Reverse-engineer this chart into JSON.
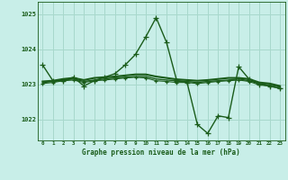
{
  "title": "Graphe pression niveau de la mer (hPa)",
  "bg_color": "#c8eee8",
  "grid_color": "#a8d8cc",
  "line_color": "#1a5c1a",
  "xlim": [
    -0.5,
    23.5
  ],
  "ylim": [
    1021.4,
    1025.35
  ],
  "yticks": [
    1022,
    1023,
    1024,
    1025
  ],
  "xticks": [
    0,
    1,
    2,
    3,
    4,
    5,
    6,
    7,
    8,
    9,
    10,
    11,
    12,
    13,
    14,
    15,
    16,
    17,
    18,
    19,
    20,
    21,
    22,
    23
  ],
  "series": [
    {
      "x": [
        0,
        1,
        2,
        3,
        4,
        5,
        6,
        7,
        8,
        9,
        10,
        11,
        12,
        13,
        14,
        15,
        16,
        17,
        18,
        19,
        20,
        21,
        22,
        23
      ],
      "y": [
        1023.55,
        1023.1,
        1023.1,
        1023.2,
        1022.95,
        1023.1,
        1023.2,
        1023.3,
        1023.55,
        1023.85,
        1024.35,
        1024.9,
        1024.2,
        1023.1,
        1023.05,
        1021.85,
        1021.6,
        1022.1,
        1022.05,
        1023.5,
        1023.15,
        1023.0,
        1022.95,
        1022.88
      ],
      "marker": "+",
      "linewidth": 1.0,
      "markersize": 4,
      "zorder": 4
    },
    {
      "x": [
        0,
        1,
        2,
        3,
        4,
        5,
        6,
        7,
        8,
        9,
        10,
        11,
        12,
        13,
        14,
        15,
        16,
        17,
        18,
        19,
        20,
        21,
        22,
        23
      ],
      "y": [
        1023.08,
        1023.1,
        1023.15,
        1023.18,
        1023.12,
        1023.18,
        1023.2,
        1023.22,
        1023.25,
        1023.28,
        1023.28,
        1023.22,
        1023.18,
        1023.14,
        1023.12,
        1023.1,
        1023.12,
        1023.15,
        1023.18,
        1023.18,
        1023.15,
        1023.05,
        1023.02,
        1022.95
      ],
      "marker": null,
      "linewidth": 1.5,
      "zorder": 3
    },
    {
      "x": [
        0,
        1,
        2,
        3,
        4,
        5,
        6,
        7,
        8,
        9,
        10,
        11,
        12,
        13,
        14,
        15,
        16,
        17,
        18,
        19,
        20,
        21,
        22,
        23
      ],
      "y": [
        1023.05,
        1023.08,
        1023.12,
        1023.15,
        1023.08,
        1023.12,
        1023.15,
        1023.18,
        1023.2,
        1023.22,
        1023.22,
        1023.15,
        1023.12,
        1023.1,
        1023.08,
        1023.05,
        1023.08,
        1023.1,
        1023.12,
        1023.15,
        1023.1,
        1023.02,
        1022.98,
        1022.92
      ],
      "marker": null,
      "linewidth": 1.0,
      "zorder": 2
    },
    {
      "x": [
        0,
        1,
        2,
        3,
        4,
        5,
        6,
        7,
        8,
        9,
        10,
        11,
        12,
        13,
        14,
        15,
        16,
        17,
        18,
        19,
        20,
        21,
        22,
        23
      ],
      "y": [
        1023.02,
        1023.05,
        1023.1,
        1023.12,
        1023.05,
        1023.1,
        1023.12,
        1023.15,
        1023.18,
        1023.2,
        1023.18,
        1023.1,
        1023.08,
        1023.05,
        1023.05,
        1023.02,
        1023.05,
        1023.08,
        1023.1,
        1023.12,
        1023.08,
        1022.98,
        1022.95,
        1022.88
      ],
      "marker": "+",
      "linewidth": 0.8,
      "markersize": 3,
      "zorder": 2
    }
  ]
}
